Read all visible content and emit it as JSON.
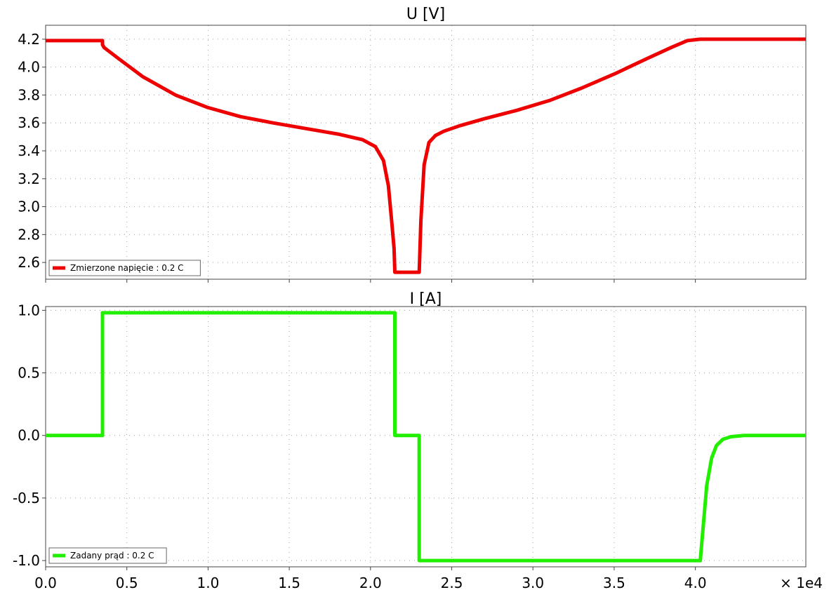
{
  "chart_data": [
    {
      "type": "line",
      "title": "U [V]",
      "xlim": [
        0,
        46800
      ],
      "ylim": [
        2.48,
        4.3
      ],
      "yticks": [
        "4.2",
        "4.0",
        "3.8",
        "3.6",
        "3.4",
        "3.2",
        "3.0",
        "2.8",
        "2.6"
      ],
      "ytick_values": [
        4.2,
        4.0,
        3.8,
        3.6,
        3.4,
        3.2,
        3.0,
        2.8,
        2.6
      ],
      "grid": true,
      "legend_position": "bottom-left",
      "series": [
        {
          "name": "Zmierzone napięcie : 0.2 C",
          "color": "#ee0000",
          "x": [
            0,
            3500,
            3500,
            3600,
            4500,
            6000,
            8000,
            10000,
            12000,
            14000,
            16000,
            18000,
            19500,
            20300,
            20800,
            21100,
            21300,
            21450,
            21500,
            21600,
            23000,
            23100,
            23300,
            23600,
            24000,
            24500,
            25500,
            27000,
            29000,
            31000,
            33000,
            35000,
            37000,
            38500,
            39500,
            40300,
            40400,
            46800
          ],
          "y": [
            4.19,
            4.19,
            4.16,
            4.14,
            4.06,
            3.93,
            3.8,
            3.71,
            3.645,
            3.6,
            3.56,
            3.52,
            3.48,
            3.43,
            3.33,
            3.15,
            2.9,
            2.7,
            2.53,
            2.53,
            2.53,
            2.9,
            3.3,
            3.46,
            3.51,
            3.54,
            3.58,
            3.63,
            3.69,
            3.76,
            3.85,
            3.95,
            4.06,
            4.14,
            4.19,
            4.2,
            4.2,
            4.2
          ]
        }
      ]
    },
    {
      "type": "line",
      "title": "I [A]",
      "xlim": [
        0,
        46800
      ],
      "ylim": [
        -1.05,
        1.03
      ],
      "yticks": [
        "1.0",
        "0.5",
        "0.0",
        "-0.5",
        "-1.0"
      ],
      "ytick_values": [
        1.0,
        0.5,
        0.0,
        -0.5,
        -1.0
      ],
      "xticks": [
        "0.0",
        "0.5",
        "1.0",
        "1.5",
        "2.0",
        "2.5",
        "3.0",
        "3.5",
        "4.0"
      ],
      "xtick_values": [
        0,
        5000,
        10000,
        15000,
        20000,
        25000,
        30000,
        35000,
        40000
      ],
      "x_scale_label": "× 1e4",
      "grid": true,
      "legend_position": "bottom-left",
      "series": [
        {
          "name": "Zadany prąd : 0.2 C",
          "color": "#22ee00",
          "x": [
            0,
            3500,
            3500,
            21500,
            21500,
            23000,
            23000,
            40300,
            40500,
            40700,
            41000,
            41300,
            41700,
            42200,
            43000,
            44000,
            46800
          ],
          "y": [
            0,
            0,
            0.98,
            0.98,
            0,
            0,
            -1.0,
            -1.0,
            -0.7,
            -0.4,
            -0.18,
            -0.08,
            -0.03,
            -0.01,
            0,
            0,
            0
          ]
        }
      ]
    }
  ]
}
